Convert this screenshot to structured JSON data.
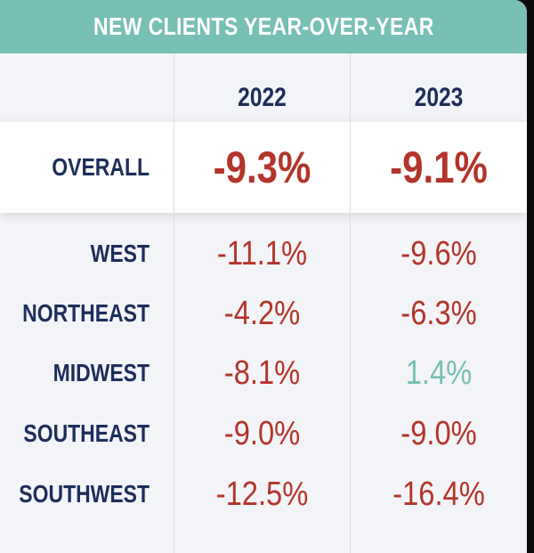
{
  "chart_data": {
    "type": "table",
    "title": "NEW CLIENTS YEAR-OVER-YEAR",
    "columns": [
      "2022",
      "2023"
    ],
    "overall": {
      "label": "OVERALL",
      "values": [
        "-9.3%",
        "-9.1%"
      ]
    },
    "rows": [
      {
        "label": "WEST",
        "values": [
          "-11.1%",
          "-9.6%"
        ]
      },
      {
        "label": "NORTHEAST",
        "values": [
          "-4.2%",
          "-6.3%"
        ]
      },
      {
        "label": "MIDWEST",
        "values": [
          "-8.1%",
          "1.4%"
        ]
      },
      {
        "label": "SOUTHEAST",
        "values": [
          "-9.0%",
          "-9.0%"
        ]
      },
      {
        "label": "SOUTHWEST",
        "values": [
          "-12.5%",
          "-16.4%"
        ]
      }
    ]
  },
  "colors": {
    "header_bar": "#78bfb5",
    "label_text": "#1d2d5b",
    "negative": "#b3342b",
    "positive": "#78bfb5"
  }
}
